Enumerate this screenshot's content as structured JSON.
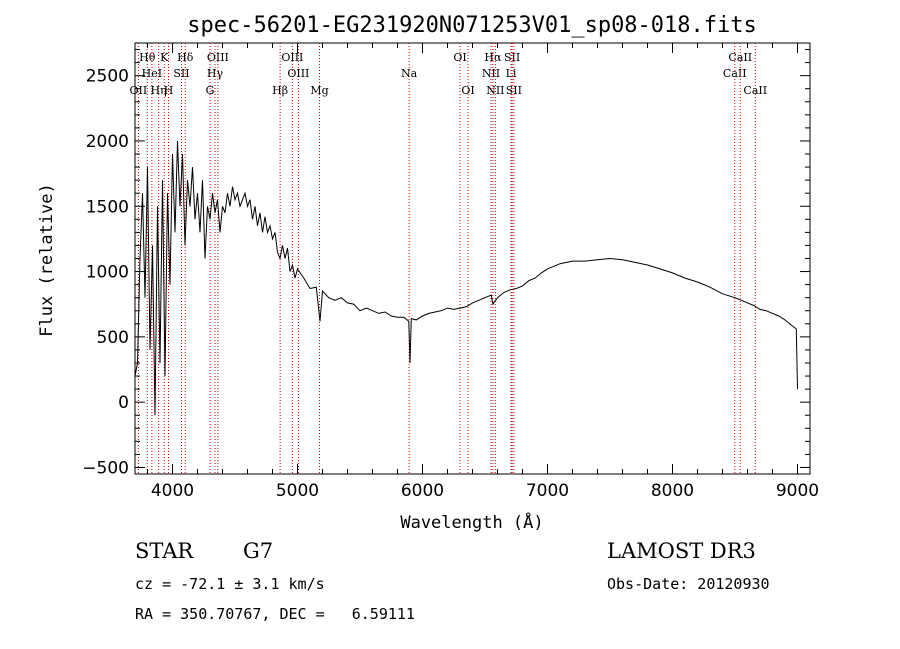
{
  "chart_data": {
    "type": "line",
    "title": "spec-56201-EG231920N071253V01_sp08-018.fits",
    "xlabel": "Wavelength (Å)",
    "ylabel": "Flux (relative)",
    "xlim": [
      3700,
      9100
    ],
    "ylim": [
      -550,
      2750
    ],
    "xticks": [
      4000,
      5000,
      6000,
      7000,
      8000,
      9000
    ],
    "yticks": [
      -500,
      0,
      500,
      1000,
      1500,
      2000,
      2500
    ],
    "grid": false,
    "series": [
      {
        "x": [
          3700,
          3720,
          3740,
          3760,
          3780,
          3800,
          3820,
          3840,
          3860,
          3880,
          3900,
          3920,
          3940,
          3960,
          3980,
          4000,
          4020,
          4040,
          4060,
          4080,
          4100,
          4120,
          4140,
          4160,
          4180,
          4200,
          4220,
          4240,
          4260,
          4280,
          4300,
          4320,
          4340,
          4360,
          4380,
          4400,
          4420,
          4440,
          4460,
          4480,
          4500,
          4520,
          4540,
          4560,
          4580,
          4600,
          4620,
          4640,
          4660,
          4680,
          4700,
          4720,
          4740,
          4760,
          4780,
          4800,
          4820,
          4840,
          4860,
          4880,
          4900,
          4920,
          4940,
          4960,
          4980,
          5000,
          5050,
          5100,
          5150,
          5180,
          5200,
          5250,
          5300,
          5350,
          5400,
          5450,
          5500,
          5550,
          5600,
          5650,
          5700,
          5750,
          5800,
          5850,
          5890,
          5900,
          5910,
          5950,
          6000,
          6050,
          6100,
          6150,
          6200,
          6250,
          6300,
          6350,
          6400,
          6450,
          6500,
          6550,
          6563,
          6600,
          6650,
          6700,
          6750,
          6800,
          6850,
          6900,
          6950,
          7000,
          7100,
          7200,
          7300,
          7400,
          7500,
          7600,
          7700,
          7800,
          7900,
          8000,
          8100,
          8200,
          8300,
          8400,
          8500,
          8550,
          8600,
          8650,
          8700,
          8750,
          8800,
          8850,
          8900,
          8950,
          8990,
          9000
        ],
        "values": [
          200,
          300,
          1100,
          1600,
          800,
          1800,
          400,
          1200,
          -100,
          1500,
          300,
          1700,
          200,
          1600,
          900,
          1900,
          1300,
          2000,
          1500,
          1900,
          1200,
          1700,
          1500,
          1800,
          1400,
          1600,
          1300,
          1700,
          1100,
          1500,
          1400,
          1600,
          1450,
          1550,
          1300,
          1500,
          1450,
          1600,
          1500,
          1650,
          1550,
          1600,
          1500,
          1550,
          1600,
          1500,
          1550,
          1400,
          1500,
          1350,
          1450,
          1300,
          1420,
          1300,
          1350,
          1250,
          1300,
          1150,
          1100,
          1200,
          1100,
          1180,
          1000,
          1050,
          950,
          1020,
          950,
          870,
          880,
          620,
          850,
          800,
          780,
          800,
          760,
          750,
          700,
          720,
          700,
          680,
          690,
          660,
          650,
          650,
          620,
          300,
          640,
          630,
          660,
          680,
          690,
          700,
          720,
          710,
          720,
          730,
          760,
          780,
          800,
          820,
          750,
          800,
          840,
          860,
          870,
          890,
          930,
          950,
          990,
          1020,
          1060,
          1080,
          1080,
          1090,
          1100,
          1090,
          1070,
          1050,
          1020,
          990,
          950,
          920,
          880,
          830,
          800,
          780,
          760,
          740,
          710,
          700,
          680,
          660,
          630,
          590,
          560,
          100
        ]
      }
    ],
    "emission_lines": [
      {
        "wave": 3727,
        "labels": [
          "OII"
        ],
        "row": 2
      },
      {
        "wave": 3798,
        "labels": [
          "Hθ"
        ],
        "row": 0
      },
      {
        "wave": 3835,
        "labels": [
          "HeI"
        ],
        "row": 1
      },
      {
        "wave": 3889,
        "labels": [
          "Hη"
        ],
        "row": 2
      },
      {
        "wave": 3934,
        "labels": [
          "K"
        ],
        "row": 0
      },
      {
        "wave": 3968,
        "labels": [
          "H"
        ],
        "row": 2
      },
      {
        "wave": 4072,
        "labels": [
          "SII"
        ],
        "row": 1
      },
      {
        "wave": 4102,
        "labels": [
          "Hδ"
        ],
        "row": 0
      },
      {
        "wave": 4300,
        "labels": [
          "G"
        ],
        "row": 2
      },
      {
        "wave": 4340,
        "labels": [
          "Hγ"
        ],
        "row": 1
      },
      {
        "wave": 4363,
        "labels": [
          "OIII"
        ],
        "row": 0
      },
      {
        "wave": 4861,
        "labels": [
          "Hβ"
        ],
        "row": 2
      },
      {
        "wave": 4959,
        "labels": [
          "OIII"
        ],
        "row": 0
      },
      {
        "wave": 5007,
        "labels": [
          "OIII"
        ],
        "row": 1
      },
      {
        "wave": 5176,
        "labels": [
          "Mg"
        ],
        "row": 2
      },
      {
        "wave": 5893,
        "labels": [
          "Na"
        ],
        "row": 1
      },
      {
        "wave": 6300,
        "labels": [
          "OI"
        ],
        "row": 0
      },
      {
        "wave": 6364,
        "labels": [
          "OI"
        ],
        "row": 2
      },
      {
        "wave": 6548,
        "labels": [
          "NII"
        ],
        "row": 1
      },
      {
        "wave": 6563,
        "labels": [
          "Hα"
        ],
        "row": 0
      },
      {
        "wave": 6583,
        "labels": [
          "NII"
        ],
        "row": 2
      },
      {
        "wave": 6708,
        "labels": [
          "Li"
        ],
        "row": 1
      },
      {
        "wave": 6717,
        "labels": [
          "SII"
        ],
        "row": 0
      },
      {
        "wave": 6731,
        "labels": [
          "SII"
        ],
        "row": 2
      },
      {
        "wave": 8498,
        "labels": [
          "CaII"
        ],
        "row": 1
      },
      {
        "wave": 8542,
        "labels": [
          "CaII"
        ],
        "row": 0
      },
      {
        "wave": 8662,
        "labels": [
          "CaII"
        ],
        "row": 2
      }
    ],
    "line_color": "#cc0000"
  },
  "info": {
    "class": "STAR",
    "subclass": "G7",
    "survey": "LAMOST DR3",
    "cz": "cz = -72.1 ± 3.1 km/s",
    "obs_date": "Obs-Date: 20120930",
    "coords": "RA = 350.70767, DEC =   6.59111"
  }
}
